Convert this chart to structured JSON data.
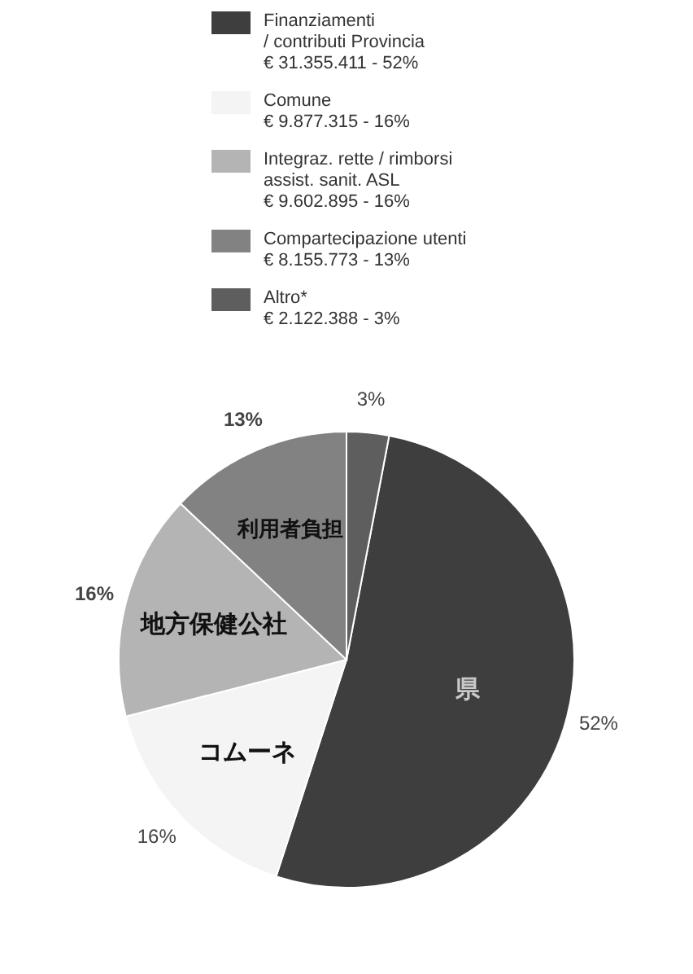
{
  "chart_data": {
    "type": "pie",
    "categories": [
      "Finanziamenti\n/ contributi Provincia\n€ 31.355.411 - 52%",
      "Comune\n€ 9.877.315 - 16%",
      "Integraz. rette / rimborsi\nassist. sanit. ASL\n€ 9.602.895 - 16%",
      "Compartecipazione utenti\n€ 8.155.773 - 13%",
      "Altro*\n€ 2.122.388 - 3%"
    ],
    "values": [
      52,
      16,
      16,
      13,
      3
    ],
    "value_labels": [
      "52%",
      "16%",
      "16%",
      "13%",
      "3%"
    ],
    "colors": [
      "#3e3e3e",
      "#f4f4f4",
      "#b4b4b4",
      "#828282",
      "#5e5e5e"
    ],
    "annotations": [
      "県",
      "コムーネ",
      "地方保健公社",
      "利用者負担"
    ],
    "legend": "top"
  }
}
